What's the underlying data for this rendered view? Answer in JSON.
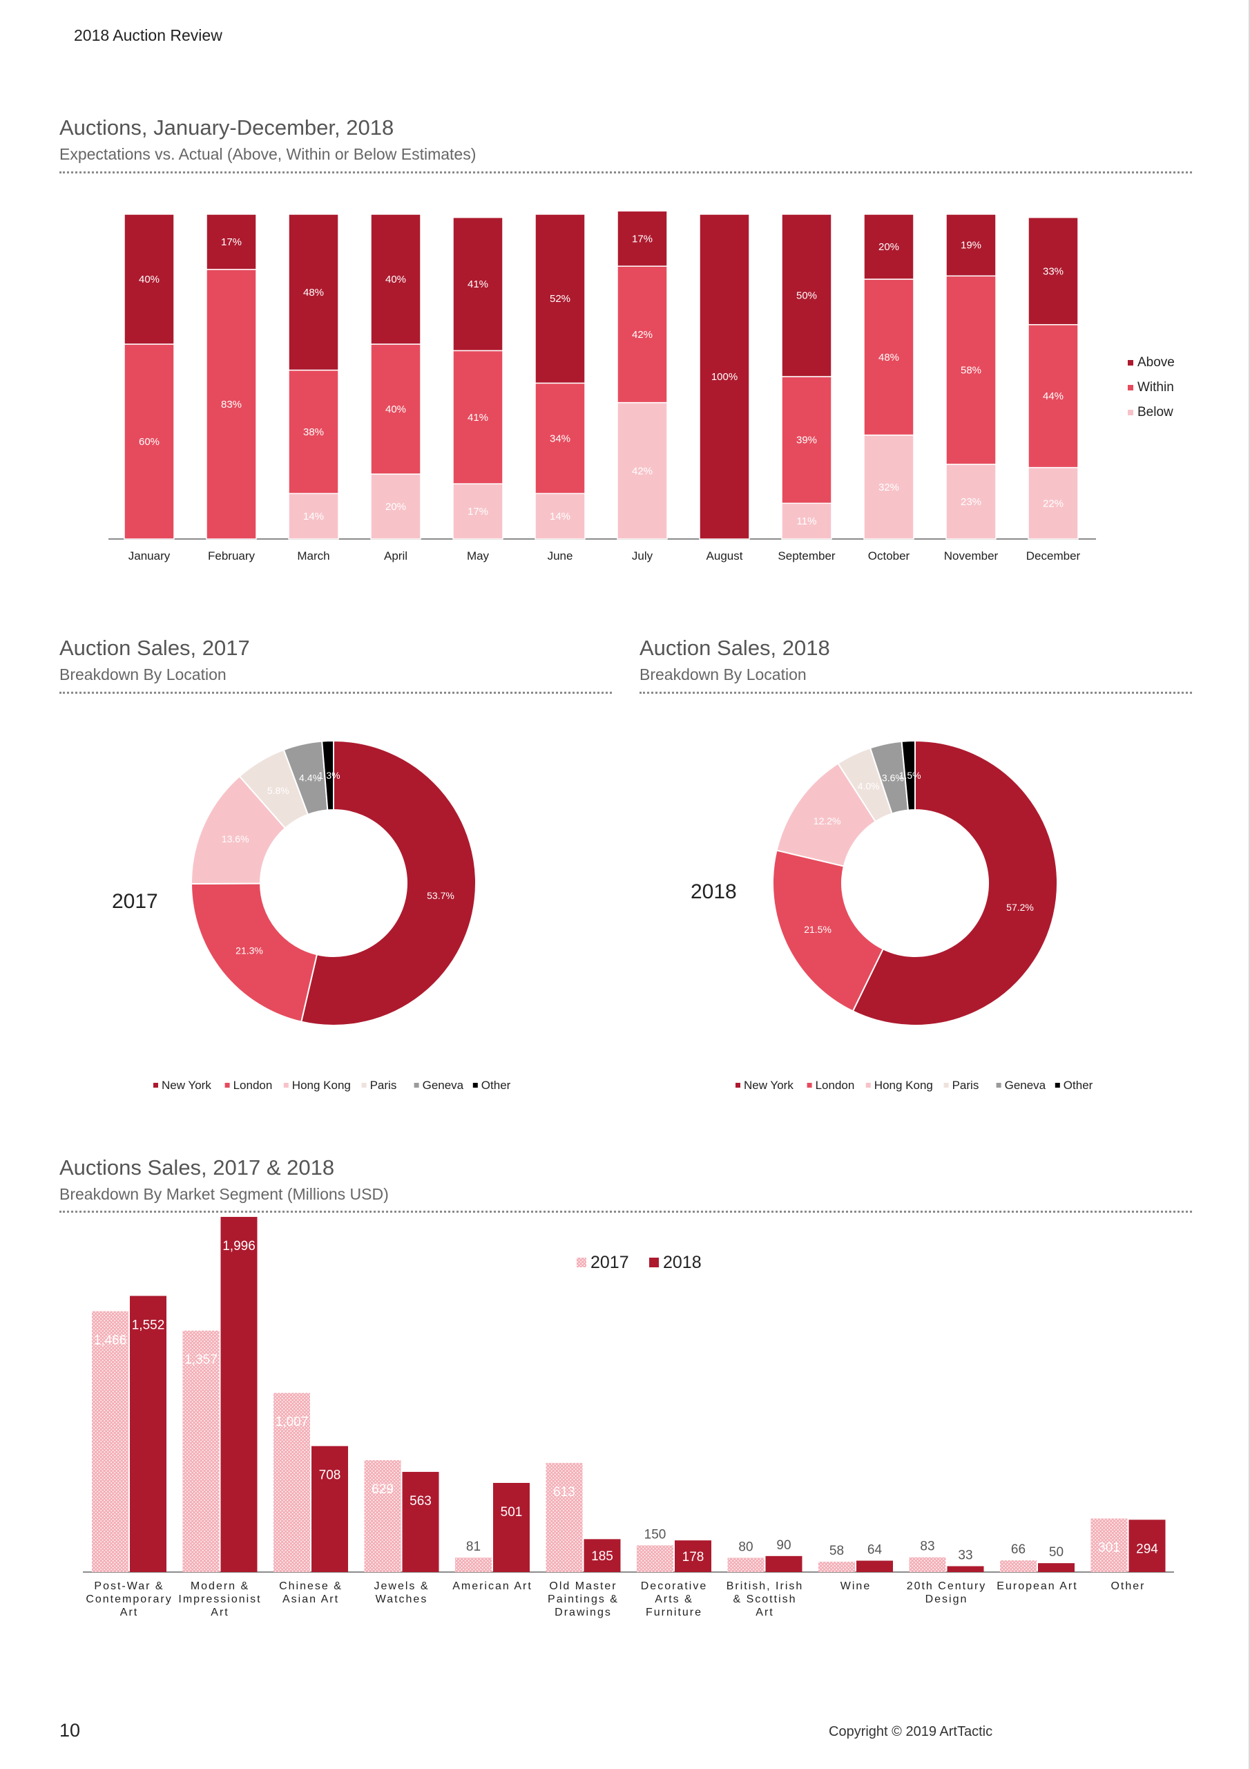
{
  "header": {
    "title": "2018 Auction Review"
  },
  "sections": {
    "monthly": {
      "title": "Auctions, January-December, 2018",
      "subtitle": "Expectations vs. Actual (Above, Within or Below Estimates)"
    },
    "loc2017": {
      "title": "Auction Sales, 2017",
      "subtitle": "Breakdown By Location",
      "year_label": "2017"
    },
    "loc2018": {
      "title": "Auction Sales, 2018",
      "subtitle": "Breakdown By Location",
      "year_label": "2018"
    },
    "segments": {
      "title": "Auctions Sales, 2017 & 2018",
      "subtitle": "Breakdown By Market Segment (Millions USD)"
    }
  },
  "footer": {
    "page_number": "10",
    "copyright": "Copyright © 2019 ArtTactic"
  },
  "colors": {
    "above": "#ad1a2e",
    "within": "#e64b5d",
    "below": "#f7c3c9",
    "paris": "#eee2dc",
    "geneva": "#9b9b9b",
    "other": "#000000"
  },
  "chart_data": [
    {
      "type": "bar",
      "stacked": true,
      "categories": [
        "January",
        "February",
        "March",
        "April",
        "May",
        "June",
        "July",
        "August",
        "September",
        "October",
        "November",
        "December"
      ],
      "series": [
        {
          "name": "Above",
          "values": [
            40,
            17,
            48,
            40,
            41,
            52,
            17,
            100,
            50,
            20,
            19,
            33
          ],
          "labels": [
            "40%",
            "17%",
            "48%",
            "40%",
            "41%",
            "52%",
            "17%",
            "100%",
            "50%",
            "20%",
            "19%",
            "33%"
          ]
        },
        {
          "name": "Within",
          "values": [
            60,
            83,
            38,
            40,
            41,
            34,
            42,
            0,
            39,
            48,
            58,
            44
          ],
          "labels": [
            "60%",
            "83%",
            "38%",
            "40%",
            "41%",
            "34%",
            "42%",
            "",
            "39%",
            "48%",
            "58%",
            "44%"
          ]
        },
        {
          "name": "Below",
          "values": [
            0,
            0,
            14,
            20,
            17,
            14,
            42,
            0,
            11,
            32,
            23,
            22
          ],
          "labels": [
            "",
            "",
            "14%",
            "20%",
            "17%",
            "14%",
            "42%",
            "",
            "11%",
            "32%",
            "23%",
            "22%"
          ]
        }
      ],
      "legend": [
        "Above",
        "Within",
        "Below"
      ],
      "legend_position": "right",
      "ylim": [
        0,
        100
      ]
    },
    {
      "type": "pie",
      "donut": true,
      "title": "2017",
      "slices": [
        {
          "name": "New York",
          "value": 53.7,
          "label": "53.7%"
        },
        {
          "name": "London",
          "value": 21.3,
          "label": "21.3%"
        },
        {
          "name": "Hong Kong",
          "value": 13.6,
          "label": "13.6%"
        },
        {
          "name": "Paris",
          "value": 5.8,
          "label": "5.8%"
        },
        {
          "name": "Geneva",
          "value": 4.4,
          "label": "4.4%"
        },
        {
          "name": "Other",
          "value": 1.3,
          "label": "1.3%"
        }
      ],
      "legend": [
        "New York",
        "London",
        "Hong Kong",
        "Paris",
        "Geneva",
        "Other"
      ],
      "legend_position": "bottom"
    },
    {
      "type": "pie",
      "donut": true,
      "title": "2018",
      "slices": [
        {
          "name": "New York",
          "value": 57.2,
          "label": "57.2%"
        },
        {
          "name": "London",
          "value": 21.5,
          "label": "21.5%"
        },
        {
          "name": "Hong Kong",
          "value": 12.2,
          "label": "12.2%"
        },
        {
          "name": "Paris",
          "value": 4.0,
          "label": "4.0%"
        },
        {
          "name": "Geneva",
          "value": 3.6,
          "label": "3.6%"
        },
        {
          "name": "Other",
          "value": 1.5,
          "label": "1.5%"
        }
      ],
      "legend": [
        "New York",
        "London",
        "Hong Kong",
        "Paris",
        "Geneva",
        "Other"
      ],
      "legend_position": "bottom"
    },
    {
      "type": "bar",
      "categories": [
        [
          "Post-War &",
          "Contemporary",
          "Art"
        ],
        [
          "Modern &",
          "Impressionist",
          "Art"
        ],
        [
          "Chinese &",
          "Asian Art"
        ],
        [
          "Jewels &",
          "Watches"
        ],
        [
          "American Art"
        ],
        [
          "Old Master",
          "Paintings &",
          "Drawings"
        ],
        [
          "Decorative",
          "Arts &",
          "Furniture"
        ],
        [
          "British, Irish",
          "& Scottish",
          "Art"
        ],
        [
          "Wine"
        ],
        [
          "20th Century",
          "Design"
        ],
        [
          "European Art"
        ],
        [
          "Other"
        ]
      ],
      "series": [
        {
          "name": "2017",
          "values": [
            1466,
            1357,
            1007,
            629,
            81,
            613,
            150,
            80,
            58,
            83,
            66,
            301
          ],
          "labels": [
            "1,466",
            "1,357",
            "1,007",
            "629",
            "81",
            "613",
            "150",
            "80",
            "58",
            "83",
            "66",
            "301"
          ]
        },
        {
          "name": "2018",
          "values": [
            1552,
            1996,
            708,
            563,
            501,
            185,
            178,
            90,
            64,
            33,
            50,
            294
          ],
          "labels": [
            "1,552",
            "1,996",
            "708",
            "563",
            "501",
            "185",
            "178",
            "90",
            "64",
            "33",
            "50",
            "294"
          ]
        }
      ],
      "legend": [
        "2017",
        "2018"
      ],
      "legend_position": "top-center",
      "ylim": [
        0,
        2000
      ]
    }
  ]
}
